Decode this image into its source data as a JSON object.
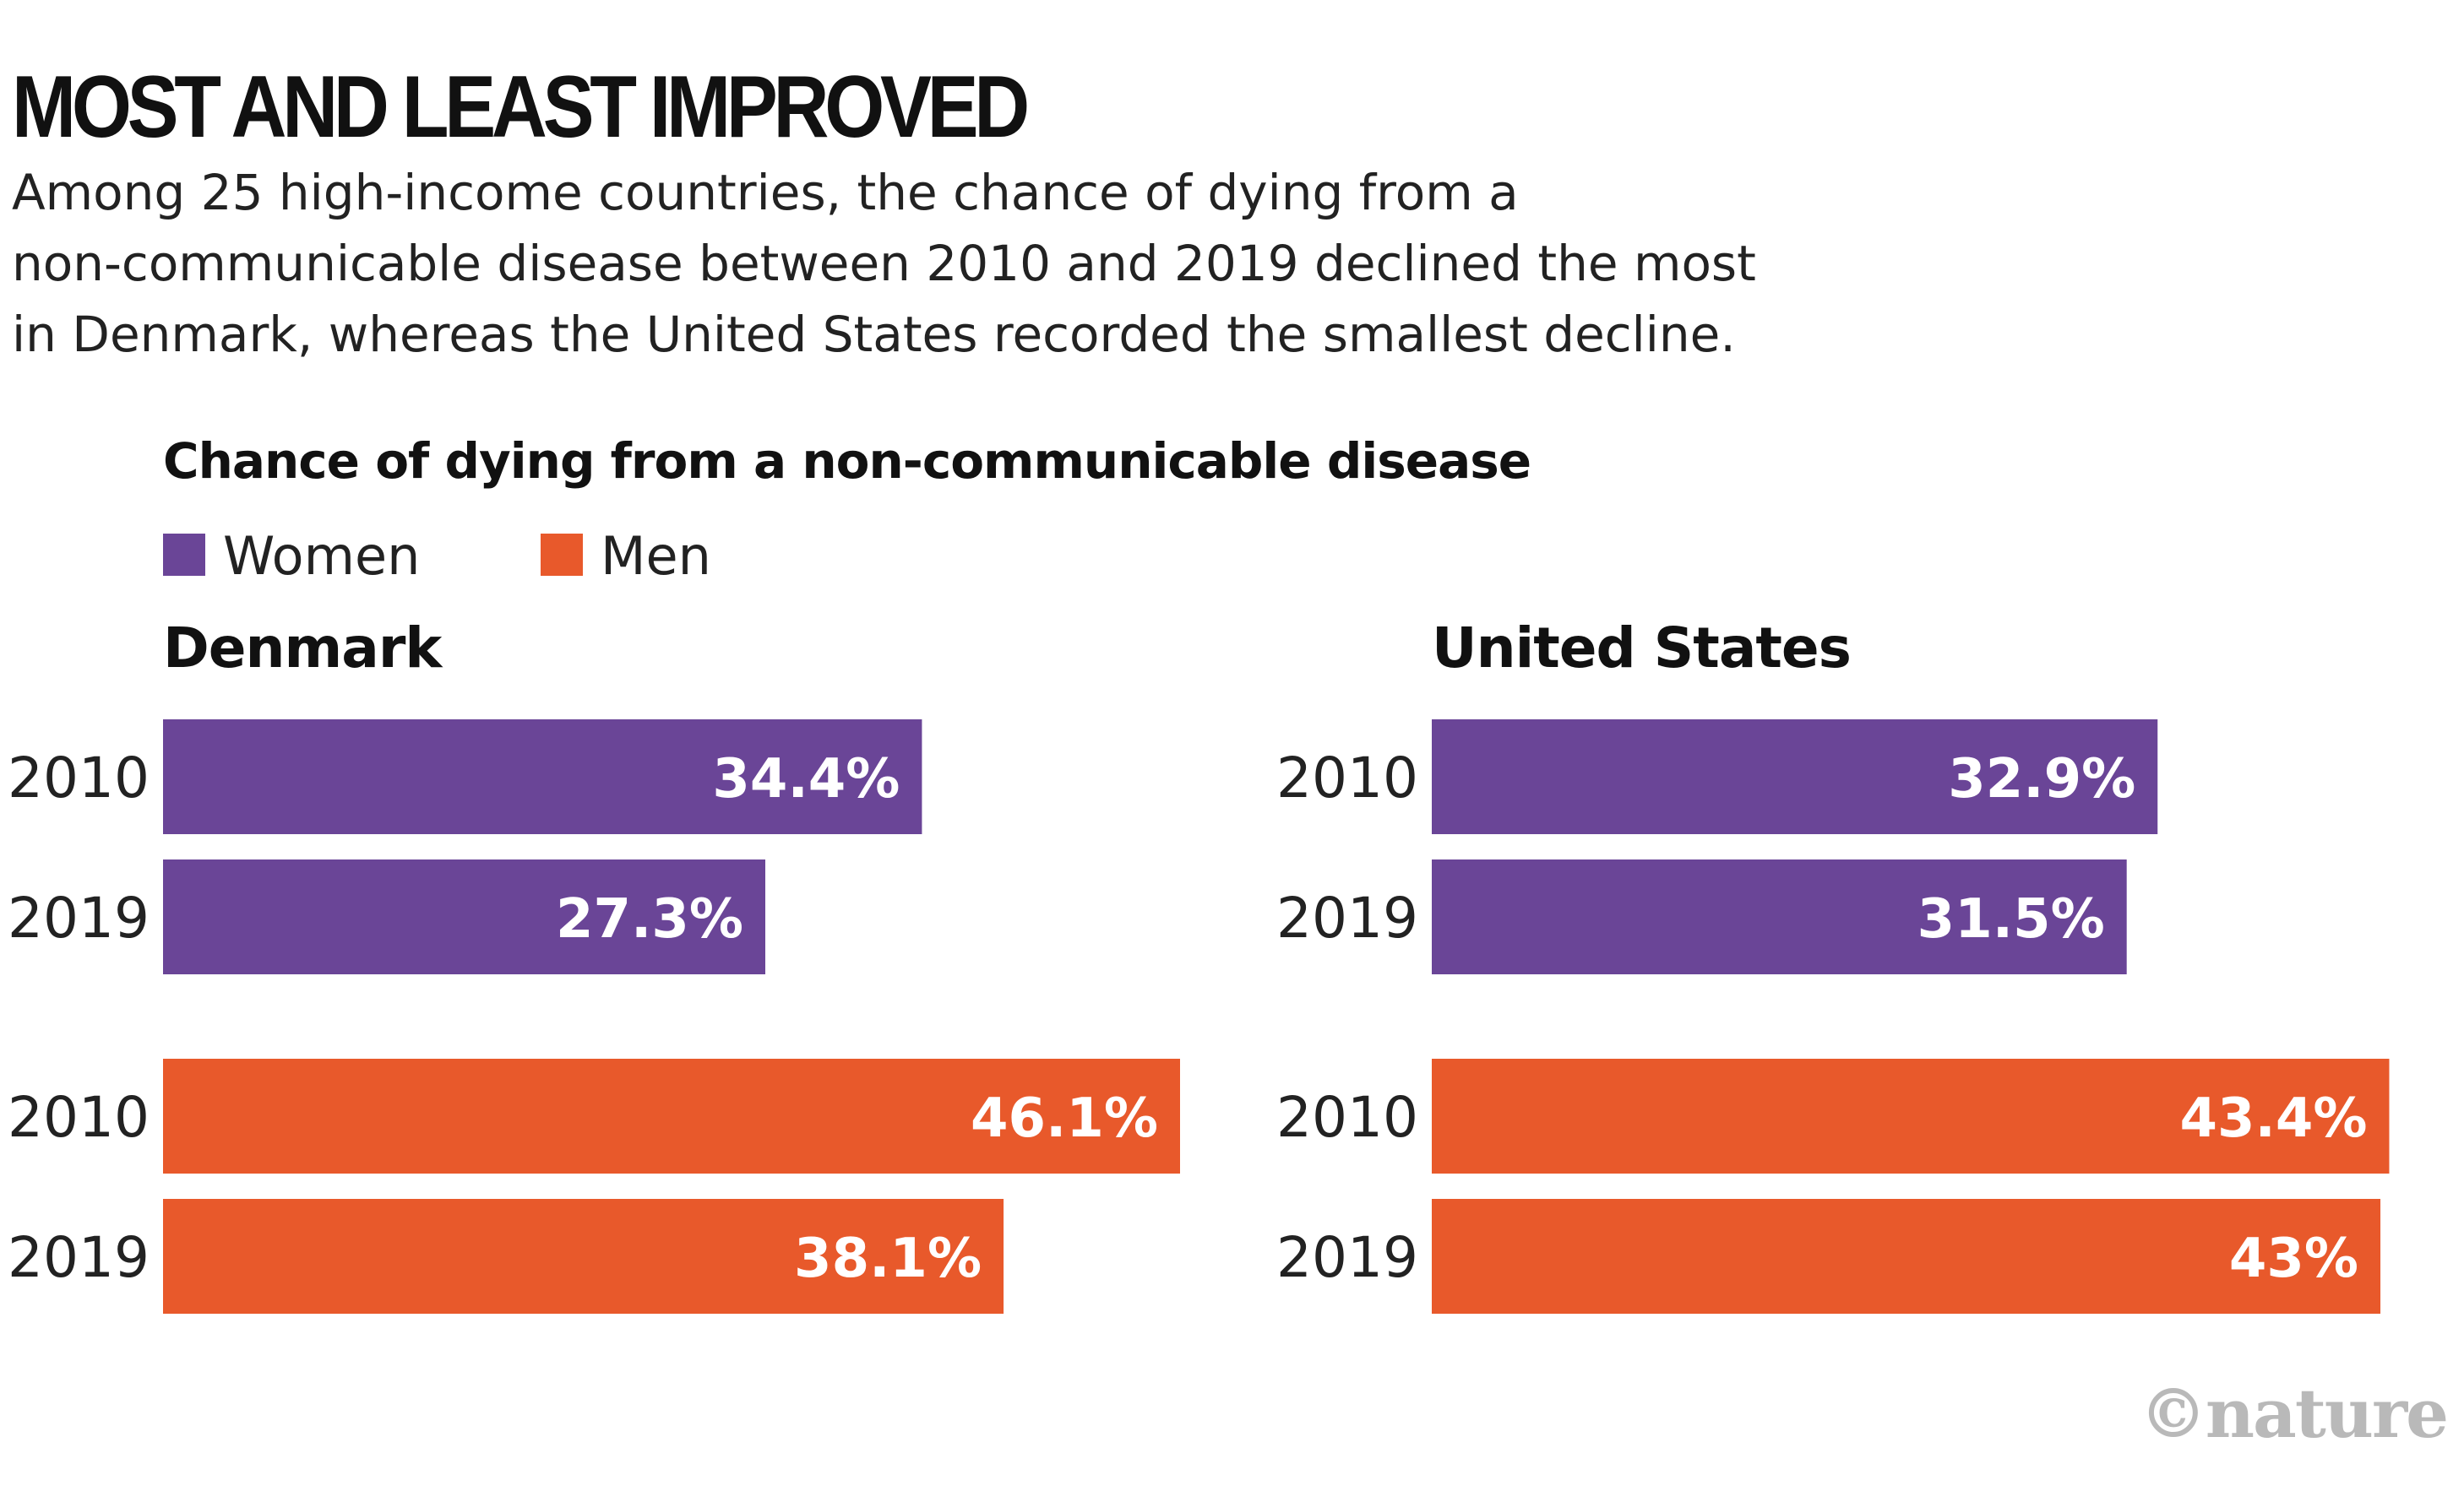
{
  "header": {
    "title": "MOST AND LEAST IMPROVED",
    "subtitle_lines": [
      "Among 25 high-income countries, the chance of dying from a",
      "non-communicable disease between 2010 and 2019 declined the most",
      "in Denmark, whereas the United States recorded the smallest decline."
    ]
  },
  "colors": {
    "women": "#6a4597",
    "men": "#e8592b",
    "credit": "#b9b9b9"
  },
  "credit": "©nature",
  "chart_data": {
    "type": "bar",
    "orientation": "horizontal",
    "title": "Chance of dying from a non-communicable disease",
    "legend": [
      "Women",
      "Men"
    ],
    "legend_position": "top-left",
    "grid": false,
    "xlim": [
      0,
      50
    ],
    "panels": [
      {
        "title": "Denmark",
        "categories": [
          "2010",
          "2019"
        ],
        "series": [
          {
            "name": "Women",
            "values": [
              34.4,
              27.3
            ],
            "labels": [
              "34.4%",
              "27.3%"
            ]
          },
          {
            "name": "Men",
            "values": [
              46.1,
              38.1
            ],
            "labels": [
              "46.1%",
              "38.1%"
            ]
          }
        ]
      },
      {
        "title": "United States",
        "categories": [
          "2010",
          "2019"
        ],
        "series": [
          {
            "name": "Women",
            "values": [
              32.9,
              31.5
            ],
            "labels": [
              "32.9%",
              "31.5%"
            ]
          },
          {
            "name": "Men",
            "values": [
              43.4,
              43
            ],
            "labels": [
              "43.4%",
              "43%"
            ]
          }
        ]
      }
    ]
  }
}
